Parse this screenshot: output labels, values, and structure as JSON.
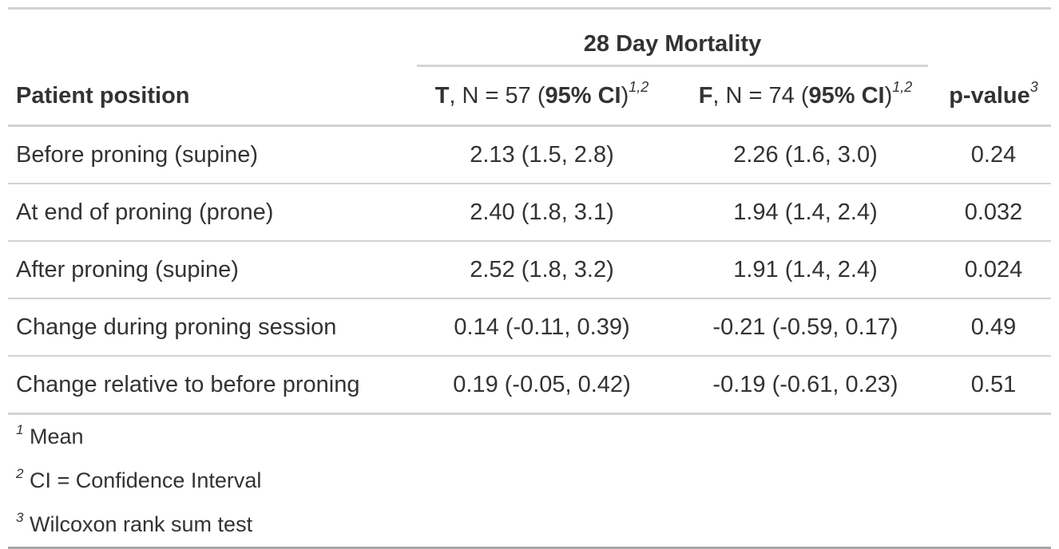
{
  "table": {
    "spanner": "28 Day Mortality",
    "headers": {
      "label": "Patient position",
      "t": {
        "group": "T",
        "n_text": ", N = 57 (",
        "ci": "95% CI",
        "close": ")",
        "sup": "1,2"
      },
      "f": {
        "group": "F",
        "n_text": ", N = 74 (",
        "ci": "95% CI",
        "close": ")",
        "sup": "1,2"
      },
      "p": {
        "label": "p-value",
        "sup": "3"
      }
    },
    "rows": [
      {
        "label": "Before proning (supine)",
        "t": "2.13 (1.5, 2.8)",
        "f": "2.26 (1.6, 3.0)",
        "p": "0.24"
      },
      {
        "label": "At end of proning (prone)",
        "t": "2.40 (1.8, 3.1)",
        "f": "1.94 (1.4, 2.4)",
        "p": "0.032"
      },
      {
        "label": "After proning (supine)",
        "t": "2.52 (1.8, 3.2)",
        "f": "1.91 (1.4, 2.4)",
        "p": "0.024"
      },
      {
        "label": "Change during proning session",
        "t": "0.14 (-0.11, 0.39)",
        "f": "-0.21 (-0.59, 0.17)",
        "p": "0.49"
      },
      {
        "label": "Change relative to before proning",
        "t": "0.19 (-0.05, 0.42)",
        "f": "-0.19 (-0.61, 0.23)",
        "p": "0.51"
      }
    ],
    "footnotes": [
      {
        "mark": "1",
        "text": "Mean"
      },
      {
        "mark": "2",
        "text": "CI = Confidence Interval"
      },
      {
        "mark": "3",
        "text": "Wilcoxon rank sum test"
      }
    ]
  }
}
